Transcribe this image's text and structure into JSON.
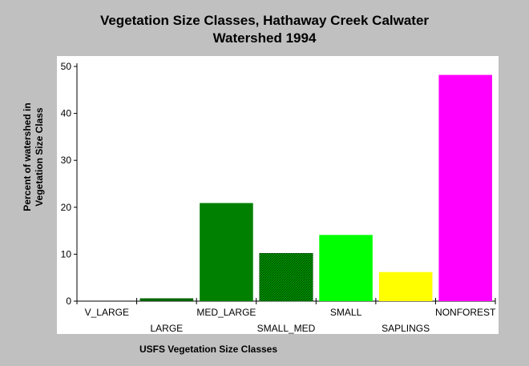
{
  "chart_data": {
    "type": "bar",
    "title_lines": [
      "Vegetation Size Classes, Hathaway Creek Calwater",
      "Watershed 1994"
    ],
    "xlabel": "USFS Vegetation Size Classes",
    "ylabel_lines": [
      "Percent of watershed in",
      "Vegetation Size Class"
    ],
    "categories": [
      "V_LARGE",
      "LARGE",
      "MED_LARGE",
      "SMALL_MED",
      "SMALL",
      "SAPLINGS",
      "NONFOREST"
    ],
    "values": [
      0,
      0.6,
      20.9,
      10.2,
      14.1,
      6.2,
      48.2
    ],
    "colors": [
      "#006400",
      "#006400",
      "#008000",
      "#006400",
      "#00ff00",
      "#ffff00",
      "#ff00ff"
    ],
    "hatched": [
      false,
      false,
      false,
      true,
      false,
      false,
      false
    ],
    "ylim": [
      0,
      50
    ],
    "yticks": [
      0,
      10,
      20,
      30,
      40,
      50
    ],
    "grid": false,
    "legend": "none"
  }
}
